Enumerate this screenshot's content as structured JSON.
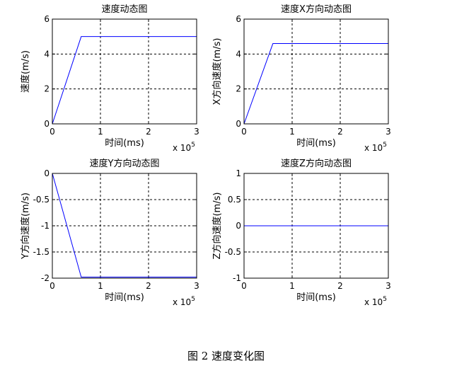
{
  "figure_caption": "图 2 速度变化图",
  "chart_data": [
    {
      "type": "line",
      "title": "速度动态图",
      "xlabel": "时间(ms)",
      "ylabel": "速度(m/s)",
      "xlim": [
        0,
        3
      ],
      "ylim": [
        0,
        6
      ],
      "x_ticks": [
        "0",
        "1",
        "2",
        "3"
      ],
      "y_ticks": [
        "0",
        "2",
        "4",
        "6"
      ],
      "x_multiplier": "x 10",
      "x_multiplier_exp": "5",
      "grid": true,
      "series": [
        {
          "x": [
            0,
            0.6,
            3
          ],
          "y": [
            0,
            5,
            5
          ],
          "color": "#0000ff"
        }
      ]
    },
    {
      "type": "line",
      "title": "速度X方向动态图",
      "xlabel": "时间(ms)",
      "ylabel": "X方向速度(m/s)",
      "xlim": [
        0,
        3
      ],
      "ylim": [
        0,
        6
      ],
      "x_ticks": [
        "0",
        "1",
        "2",
        "3"
      ],
      "y_ticks": [
        "0",
        "2",
        "4",
        "6"
      ],
      "x_multiplier": "x 10",
      "x_multiplier_exp": "5",
      "grid": true,
      "series": [
        {
          "x": [
            0,
            0.6,
            3
          ],
          "y": [
            0,
            4.6,
            4.6
          ],
          "color": "#0000ff"
        }
      ]
    },
    {
      "type": "line",
      "title": "速度Y方向动态图",
      "xlabel": "时间(ms)",
      "ylabel": "Y方向速度(m/s)",
      "xlim": [
        0,
        3
      ],
      "ylim": [
        -2,
        0
      ],
      "x_ticks": [
        "0",
        "1",
        "2",
        "3"
      ],
      "y_ticks": [
        "-2",
        "-1.5",
        "-1",
        "-0.5",
        "0"
      ],
      "x_multiplier": "x 10",
      "x_multiplier_exp": "5",
      "grid": true,
      "series": [
        {
          "x": [
            0,
            0.6,
            3
          ],
          "y": [
            0,
            -1.98,
            -1.98
          ],
          "color": "#0000ff"
        }
      ]
    },
    {
      "type": "line",
      "title": "速度Z方向动态图",
      "xlabel": "时间(ms)",
      "ylabel": "Z方向速度(m/s)",
      "xlim": [
        0,
        3
      ],
      "ylim": [
        -1,
        1
      ],
      "x_ticks": [
        "0",
        "1",
        "2",
        "3"
      ],
      "y_ticks": [
        "-1",
        "-0.5",
        "0",
        "0.5",
        "1"
      ],
      "x_multiplier": "x 10",
      "x_multiplier_exp": "5",
      "grid": true,
      "series": [
        {
          "x": [
            0,
            3
          ],
          "y": [
            0,
            0
          ],
          "color": "#0000ff"
        }
      ]
    }
  ]
}
